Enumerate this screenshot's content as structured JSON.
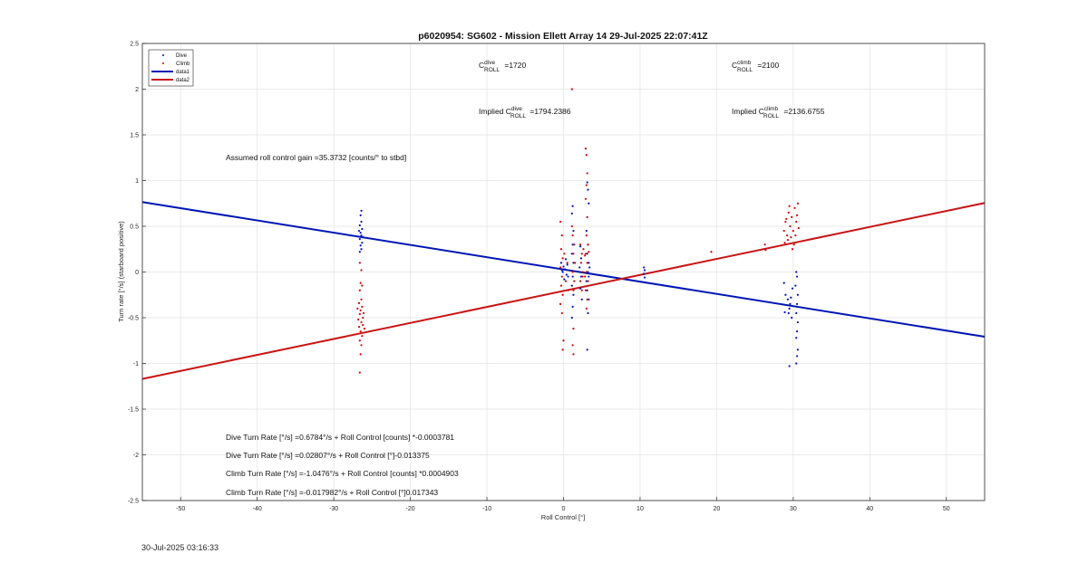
{
  "colors": {
    "dive": "#0010c0",
    "climb": "#d40000",
    "data1": "#0016b4",
    "data2": "#c81414",
    "grid": "#e3e3e3",
    "axis": "#262626"
  },
  "chart_data": {
    "type": "scatter",
    "title": "p6020954: SG602 - Mission Ellett Array 14 29-Jul-2025 22:07:41Z",
    "xlabel": "Roll Control [°]",
    "ylabel": "Turn rate [°/s] (starboard positive)",
    "xlim": [
      -55,
      55
    ],
    "ylim": [
      -2.5,
      2.5
    ],
    "xticks": [
      -50,
      -40,
      -30,
      -20,
      -10,
      0,
      10,
      20,
      30,
      40,
      50
    ],
    "yticks": [
      -2.5,
      -2,
      -1.5,
      -1,
      -0.5,
      0,
      0.5,
      1,
      1.5,
      2,
      2.5
    ],
    "grid": true,
    "legend_position": "top-left",
    "legend": [
      "Dive",
      "Climb",
      "data1",
      "data2"
    ],
    "series": [
      {
        "name": "Dive",
        "kind": "points",
        "color": "#0010c0",
        "points": [
          [
            -26.4,
            0.67
          ],
          [
            -26.5,
            0.62
          ],
          [
            -26.4,
            0.55
          ],
          [
            -26.6,
            0.51
          ],
          [
            -26.3,
            0.47
          ],
          [
            -26.5,
            0.43
          ],
          [
            -26.4,
            0.4
          ],
          [
            -26.6,
            0.36
          ],
          [
            -26.3,
            0.32
          ],
          [
            -26.5,
            0.29
          ],
          [
            -26.4,
            0.25
          ],
          [
            -26.6,
            0.22
          ],
          [
            -26.2,
            0.38
          ],
          [
            -26.7,
            0.45
          ],
          [
            -0.3,
            0.1
          ],
          [
            0.0,
            0.06
          ],
          [
            0.2,
            0.03
          ],
          [
            -0.1,
            0.0
          ],
          [
            0.4,
            -0.03
          ],
          [
            0.1,
            -0.08
          ],
          [
            0.3,
            0.14
          ],
          [
            -0.2,
            0.02
          ],
          [
            0.5,
            0.08
          ],
          [
            0.6,
            -0.05
          ],
          [
            1.2,
            0.72
          ],
          [
            1.1,
            0.64
          ],
          [
            1.3,
            0.45
          ],
          [
            1.2,
            0.3
          ],
          [
            1.1,
            0.2
          ],
          [
            1.3,
            0.1
          ],
          [
            1.2,
            -0.05
          ],
          [
            1.1,
            -0.15
          ],
          [
            1.3,
            -0.25
          ],
          [
            1.2,
            -0.38
          ],
          [
            1.1,
            -0.5
          ],
          [
            2.2,
            0.28
          ],
          [
            2.3,
            0.15
          ],
          [
            2.1,
            0.05
          ],
          [
            2.3,
            -0.05
          ],
          [
            2.2,
            -0.18
          ],
          [
            2.4,
            -0.3
          ],
          [
            3.1,
            0.98
          ],
          [
            3.2,
            0.9
          ],
          [
            3.3,
            0.75
          ],
          [
            3.0,
            0.45
          ],
          [
            3.2,
            0.3
          ],
          [
            3.1,
            0.2
          ],
          [
            3.3,
            0.1
          ],
          [
            3.2,
            0.0
          ],
          [
            3.0,
            -0.1
          ],
          [
            3.1,
            -0.2
          ],
          [
            3.3,
            -0.3
          ],
          [
            3.2,
            -0.45
          ],
          [
            3.1,
            -0.85
          ],
          [
            3.4,
            0.05
          ],
          [
            3.3,
            -0.05
          ],
          [
            10.5,
            0.05
          ],
          [
            10.6,
            0.02
          ],
          [
            10.5,
            -0.02
          ],
          [
            10.6,
            -0.06
          ],
          [
            28.8,
            -0.12
          ],
          [
            29.0,
            -0.25
          ],
          [
            29.3,
            -0.3
          ],
          [
            29.5,
            -0.4
          ],
          [
            29.7,
            -0.28
          ],
          [
            29.4,
            -0.45
          ],
          [
            29.6,
            -0.35
          ],
          [
            29.9,
            -0.18
          ],
          [
            28.9,
            -0.44
          ],
          [
            29.8,
            -0.5
          ],
          [
            29.5,
            -1.03
          ],
          [
            30.4,
            0.0
          ],
          [
            30.5,
            -0.05
          ],
          [
            30.3,
            -0.15
          ],
          [
            30.6,
            -0.25
          ],
          [
            30.5,
            -0.35
          ],
          [
            30.4,
            -0.45
          ],
          [
            30.6,
            -0.55
          ],
          [
            30.5,
            -0.65
          ],
          [
            30.4,
            -0.72
          ],
          [
            30.6,
            -0.85
          ],
          [
            30.5,
            -0.92
          ],
          [
            30.4,
            -1.0
          ]
        ]
      },
      {
        "name": "Climb",
        "kind": "points",
        "color": "#d40000",
        "points": [
          [
            -26.6,
            -1.1
          ],
          [
            -26.5,
            -0.9
          ],
          [
            -26.4,
            -0.8
          ],
          [
            -26.6,
            -0.75
          ],
          [
            -26.3,
            -0.7
          ],
          [
            -26.5,
            -0.65
          ],
          [
            -26.7,
            -0.6
          ],
          [
            -26.4,
            -0.55
          ],
          [
            -26.2,
            -0.5
          ],
          [
            -26.6,
            -0.46
          ],
          [
            -26.5,
            -0.42
          ],
          [
            -26.3,
            -0.38
          ],
          [
            -26.7,
            -0.34
          ],
          [
            -26.4,
            -0.3
          ],
          [
            -26.6,
            -0.2
          ],
          [
            -26.5,
            -0.12
          ],
          [
            -26.4,
            0.02
          ],
          [
            -26.2,
            -0.58
          ],
          [
            -26.8,
            -0.52
          ],
          [
            -26.1,
            -0.45
          ],
          [
            -26.9,
            -0.4
          ],
          [
            -26.0,
            -0.62
          ],
          [
            -26.3,
            -0.15
          ],
          [
            -26.6,
            0.1
          ],
          [
            -0.4,
            0.55
          ],
          [
            -0.2,
            0.4
          ],
          [
            -0.3,
            0.25
          ],
          [
            -0.1,
            0.15
          ],
          [
            -0.4,
            0.05
          ],
          [
            -0.2,
            -0.05
          ],
          [
            -0.3,
            -0.15
          ],
          [
            -0.1,
            -0.25
          ],
          [
            -0.4,
            -0.35
          ],
          [
            -0.2,
            -0.45
          ],
          [
            0.0,
            -0.75
          ],
          [
            -0.1,
            -0.85
          ],
          [
            0.1,
            0.2
          ],
          [
            0.3,
            -0.1
          ],
          [
            0.5,
            0.1
          ],
          [
            0.6,
            -0.2
          ],
          [
            1.3,
            -0.9
          ],
          [
            1.2,
            -0.8
          ],
          [
            1.3,
            -0.62
          ],
          [
            1.1,
            0.5
          ],
          [
            1.2,
            0.4
          ],
          [
            1.4,
            0.3
          ],
          [
            1.3,
            0.2
          ],
          [
            1.5,
            0.1
          ],
          [
            1.2,
            0.0
          ],
          [
            1.4,
            -0.1
          ],
          [
            1.3,
            -0.2
          ],
          [
            1.1,
            2.0
          ],
          [
            2.2,
            0.3
          ],
          [
            2.4,
            0.2
          ],
          [
            2.3,
            0.1
          ],
          [
            2.5,
            0.0
          ],
          [
            2.2,
            -0.1
          ],
          [
            2.4,
            -0.2
          ],
          [
            2.6,
            0.25
          ],
          [
            2.5,
            -0.05
          ],
          [
            2.9,
            1.35
          ],
          [
            3.0,
            1.28
          ],
          [
            3.1,
            1.08
          ],
          [
            3.0,
            0.95
          ],
          [
            2.9,
            0.8
          ],
          [
            3.1,
            0.6
          ],
          [
            3.0,
            0.4
          ],
          [
            3.2,
            0.3
          ],
          [
            2.9,
            0.2
          ],
          [
            3.1,
            0.1
          ],
          [
            3.0,
            0.0
          ],
          [
            3.2,
            -0.1
          ],
          [
            2.9,
            -0.2
          ],
          [
            3.1,
            -0.3
          ],
          [
            3.0,
            -0.4
          ],
          [
            2.8,
            0.18
          ],
          [
            3.3,
            0.22
          ],
          [
            2.8,
            -0.05
          ],
          [
            19.3,
            0.22
          ],
          [
            26.3,
            0.3
          ],
          [
            26.4,
            0.24
          ],
          [
            28.8,
            0.45
          ],
          [
            29.0,
            0.55
          ],
          [
            29.2,
            0.4
          ],
          [
            29.4,
            0.65
          ],
          [
            29.6,
            0.5
          ],
          [
            29.3,
            0.35
          ],
          [
            29.8,
            0.6
          ],
          [
            30.0,
            0.45
          ],
          [
            30.2,
            0.7
          ],
          [
            30.4,
            0.55
          ],
          [
            30.6,
            0.75
          ],
          [
            30.5,
            0.62
          ],
          [
            30.3,
            0.4
          ],
          [
            30.1,
            0.3
          ],
          [
            29.9,
            0.25
          ],
          [
            29.5,
            0.72
          ],
          [
            29.1,
            0.58
          ],
          [
            28.9,
            0.32
          ],
          [
            30.7,
            0.48
          ],
          [
            29.7,
            0.38
          ]
        ]
      },
      {
        "name": "data1",
        "kind": "line",
        "color": "#0016b4",
        "points": [
          [
            -55,
            0.7648
          ],
          [
            55,
            -0.7082
          ]
        ]
      },
      {
        "name": "data2",
        "kind": "line",
        "color": "#c81414",
        "points": [
          [
            -55,
            -1.1696
          ],
          [
            55,
            0.7552
          ]
        ]
      }
    ],
    "annotations": {
      "c_dive": {
        "main": "C",
        "sup": "dive",
        "sub": "ROLL",
        "value": " =1720"
      },
      "c_climb": {
        "main": "C",
        "sup": "climb",
        "sub": "ROLL",
        "value": " =2100"
      },
      "implied_dive": {
        "prefix": "Implied C",
        "sup": "dive",
        "sub": "ROLL",
        "value": " =1794.2386"
      },
      "implied_climb": {
        "prefix": "Implied C",
        "sup": "climb",
        "sub": "ROLL",
        "value": " =2136.6755"
      },
      "gain": "Assumed roll control gain =35.3732 [counts/° to stbd]",
      "eq1": "Dive Turn Rate [°/s] =0.6784°/s + Roll Control [counts] *-0.0003781",
      "eq2": "Dive Turn Rate [°/s] =0.02807°/s + Roll Control [°]-0.013375",
      "eq3": "Climb Turn Rate [°/s] =-1.0476°/s + Roll Control [counts] *0.0004903",
      "eq4": "Climb Turn Rate [°/s] =-0.017982°/s + Roll Control [°]0.017343"
    }
  },
  "footer": {
    "timestamp": "30-Jul-2025 03:16:33"
  }
}
